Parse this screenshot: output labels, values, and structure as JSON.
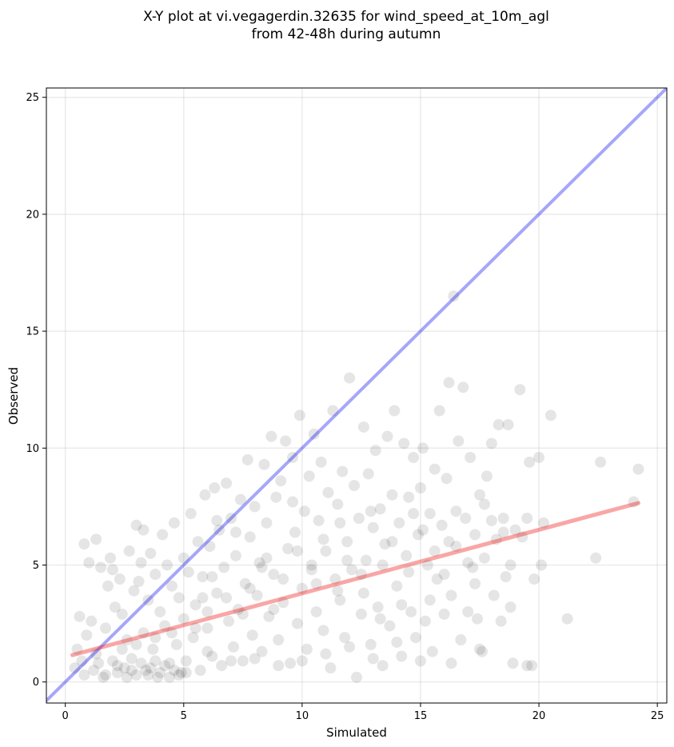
{
  "chart_data": {
    "type": "scatter",
    "title_line1": "X-Y plot at vi.vegagerdin.32635 for wind_speed_at_10m_agl",
    "title_line2": "from 42-48h during autumn",
    "xlabel": "Simulated",
    "ylabel": "Observed",
    "xlim": [
      -0.8,
      25.4
    ],
    "ylim": [
      -0.9,
      25.4
    ],
    "xticks": [
      0,
      5,
      10,
      15,
      20,
      25
    ],
    "yticks": [
      0,
      5,
      10,
      15,
      20,
      25
    ],
    "grid": true,
    "point_color": "#000000",
    "point_alpha": 0.1,
    "identity_line": {
      "color": "#0000ee",
      "alpha": 0.35,
      "from": [
        -0.8,
        -0.8
      ],
      "to": [
        25.4,
        25.4
      ]
    },
    "fit_line": {
      "color": "#ee0000",
      "alpha": 0.35,
      "from": [
        0.3,
        1.15
      ],
      "to": [
        24.2,
        7.65
      ]
    },
    "points": [
      [
        0.4,
        0.6
      ],
      [
        0.5,
        1.4
      ],
      [
        0.6,
        2.8
      ],
      [
        0.7,
        0.9
      ],
      [
        0.8,
        5.9
      ],
      [
        0.8,
        0.3
      ],
      [
        0.9,
        2.0
      ],
      [
        1.0,
        5.1
      ],
      [
        1.1,
        2.6
      ],
      [
        1.2,
        0.5
      ],
      [
        1.3,
        6.1
      ],
      [
        1.3,
        1.2
      ],
      [
        1.5,
        4.9
      ],
      [
        1.6,
        0.2
      ],
      [
        1.7,
        2.3
      ],
      [
        1.8,
        4.1
      ],
      [
        1.9,
        5.3
      ],
      [
        2.0,
        0.9
      ],
      [
        2.0,
        4.8
      ],
      [
        2.1,
        3.2
      ],
      [
        2.2,
        0.4
      ],
      [
        2.3,
        4.4
      ],
      [
        2.4,
        2.9
      ],
      [
        2.5,
        0.6
      ],
      [
        2.6,
        1.8
      ],
      [
        2.7,
        5.6
      ],
      [
        2.8,
        1.0
      ],
      [
        2.9,
        3.9
      ],
      [
        3.0,
        6.7
      ],
      [
        3.0,
        0.3
      ],
      [
        3.1,
        4.3
      ],
      [
        3.2,
        5.1
      ],
      [
        3.3,
        6.5
      ],
      [
        3.3,
        2.1
      ],
      [
        3.4,
        0.5
      ],
      [
        3.5,
        3.5
      ],
      [
        3.6,
        5.5
      ],
      [
        3.7,
        1.4
      ],
      [
        3.8,
        4.6
      ],
      [
        3.9,
        0.2
      ],
      [
        4.0,
        3.0
      ],
      [
        4.1,
        6.3
      ],
      [
        4.2,
        2.4
      ],
      [
        4.3,
        5.0
      ],
      [
        4.4,
        0.8
      ],
      [
        4.5,
        4.1
      ],
      [
        4.6,
        6.8
      ],
      [
        4.7,
        1.6
      ],
      [
        4.8,
        3.6
      ],
      [
        4.9,
        0.4
      ],
      [
        5.0,
        5.3
      ],
      [
        5.0,
        2.7
      ],
      [
        5.1,
        0.9
      ],
      [
        5.2,
        4.7
      ],
      [
        5.3,
        7.2
      ],
      [
        5.4,
        1.9
      ],
      [
        5.5,
        3.3
      ],
      [
        5.6,
        6.0
      ],
      [
        5.7,
        0.5
      ],
      [
        5.8,
        4.5
      ],
      [
        5.9,
        8.0
      ],
      [
        6.0,
        2.3
      ],
      [
        6.1,
        5.8
      ],
      [
        6.2,
        1.1
      ],
      [
        6.3,
        8.3
      ],
      [
        6.4,
        3.8
      ],
      [
        6.5,
        6.5
      ],
      [
        6.6,
        0.7
      ],
      [
        6.7,
        4.9
      ],
      [
        6.8,
        8.5
      ],
      [
        6.9,
        2.6
      ],
      [
        7.0,
        7.0
      ],
      [
        7.1,
        1.5
      ],
      [
        7.2,
        5.4
      ],
      [
        7.3,
        3.1
      ],
      [
        7.4,
        7.8
      ],
      [
        7.5,
        0.9
      ],
      [
        7.6,
        4.2
      ],
      [
        7.7,
        9.5
      ],
      [
        7.8,
        6.2
      ],
      [
        7.9,
        2.0
      ],
      [
        8.0,
        7.5
      ],
      [
        8.1,
        3.7
      ],
      [
        8.2,
        5.1
      ],
      [
        8.3,
        1.3
      ],
      [
        8.4,
        9.3
      ],
      [
        8.5,
        6.8
      ],
      [
        8.6,
        2.8
      ],
      [
        8.7,
        10.5
      ],
      [
        8.8,
        4.6
      ],
      [
        8.9,
        7.9
      ],
      [
        9.0,
        1.8
      ],
      [
        9.1,
        8.6
      ],
      [
        9.2,
        3.4
      ],
      [
        9.3,
        10.3
      ],
      [
        9.4,
        5.7
      ],
      [
        9.5,
        0.8
      ],
      [
        9.6,
        9.6
      ],
      [
        9.7,
        6.4
      ],
      [
        9.8,
        2.5
      ],
      [
        9.9,
        11.4
      ],
      [
        10.0,
        4.0
      ],
      [
        10.1,
        7.3
      ],
      [
        10.2,
        1.4
      ],
      [
        10.3,
        8.8
      ],
      [
        10.4,
        5.0
      ],
      [
        10.5,
        10.6
      ],
      [
        10.6,
        3.0
      ],
      [
        10.7,
        6.9
      ],
      [
        10.8,
        9.4
      ],
      [
        10.9,
        2.2
      ],
      [
        11.0,
        5.6
      ],
      [
        11.1,
        8.1
      ],
      [
        11.2,
        0.6
      ],
      [
        11.3,
        11.6
      ],
      [
        11.4,
        4.4
      ],
      [
        11.5,
        7.6
      ],
      [
        11.6,
        3.5
      ],
      [
        11.7,
        9.0
      ],
      [
        11.8,
        1.9
      ],
      [
        11.9,
        6.0
      ],
      [
        12.0,
        13.0
      ],
      [
        12.1,
        4.8
      ],
      [
        12.2,
        8.4
      ],
      [
        12.3,
        0.2
      ],
      [
        12.4,
        7.0
      ],
      [
        12.5,
        2.9
      ],
      [
        12.6,
        10.9
      ],
      [
        12.7,
        5.2
      ],
      [
        12.8,
        8.9
      ],
      [
        12.9,
        1.6
      ],
      [
        13.0,
        6.6
      ],
      [
        13.1,
        9.9
      ],
      [
        13.2,
        3.2
      ],
      [
        13.3,
        7.4
      ],
      [
        13.4,
        0.7
      ],
      [
        13.5,
        5.9
      ],
      [
        13.6,
        10.5
      ],
      [
        13.7,
        2.4
      ],
      [
        13.8,
        8.0
      ],
      [
        13.9,
        11.6
      ],
      [
        14.0,
        4.1
      ],
      [
        14.1,
        6.8
      ],
      [
        14.2,
        1.1
      ],
      [
        14.3,
        10.2
      ],
      [
        14.4,
        5.4
      ],
      [
        14.5,
        7.9
      ],
      [
        14.6,
        3.0
      ],
      [
        14.7,
        9.6
      ],
      [
        14.8,
        1.9
      ],
      [
        14.9,
        6.3
      ],
      [
        15.0,
        8.3
      ],
      [
        15.1,
        10.0
      ],
      [
        15.2,
        2.6
      ],
      [
        15.3,
        5.0
      ],
      [
        15.4,
        7.2
      ],
      [
        15.5,
        1.3
      ],
      [
        15.6,
        9.1
      ],
      [
        15.7,
        4.4
      ],
      [
        15.8,
        11.6
      ],
      [
        15.9,
        6.7
      ],
      [
        16.0,
        2.9
      ],
      [
        16.1,
        8.7
      ],
      [
        16.2,
        12.8
      ],
      [
        16.3,
        3.7
      ],
      [
        16.4,
        16.5
      ],
      [
        16.5,
        5.8
      ],
      [
        16.6,
        10.3
      ],
      [
        16.7,
        1.8
      ],
      [
        16.8,
        12.6
      ],
      [
        16.9,
        7.0
      ],
      [
        17.0,
        3.0
      ],
      [
        17.1,
        9.6
      ],
      [
        17.2,
        4.9
      ],
      [
        17.3,
        6.3
      ],
      [
        17.4,
        2.7
      ],
      [
        17.5,
        8.0
      ],
      [
        17.6,
        1.3
      ],
      [
        17.7,
        5.3
      ],
      [
        17.8,
        8.8
      ],
      [
        18.0,
        10.2
      ],
      [
        18.1,
        3.7
      ],
      [
        18.2,
        6.1
      ],
      [
        18.3,
        11.0
      ],
      [
        18.4,
        2.6
      ],
      [
        18.5,
        7.0
      ],
      [
        18.6,
        4.5
      ],
      [
        18.7,
        11.0
      ],
      [
        18.8,
        5.0
      ],
      [
        18.9,
        0.8
      ],
      [
        19.2,
        12.5
      ],
      [
        19.3,
        6.2
      ],
      [
        19.5,
        7.0
      ],
      [
        19.6,
        9.4
      ],
      [
        19.7,
        0.7
      ],
      [
        19.8,
        4.4
      ],
      [
        20.0,
        9.6
      ],
      [
        20.1,
        5.0
      ],
      [
        20.2,
        6.8
      ],
      [
        20.5,
        11.4
      ],
      [
        21.2,
        2.7
      ],
      [
        22.4,
        5.3
      ],
      [
        22.6,
        9.4
      ],
      [
        24.0,
        7.7
      ],
      [
        24.2,
        9.1
      ],
      [
        1.4,
        0.8
      ],
      [
        1.7,
        0.3
      ],
      [
        2.2,
        0.7
      ],
      [
        2.6,
        0.2
      ],
      [
        2.8,
        0.5
      ],
      [
        3.2,
        0.8
      ],
      [
        3.5,
        0.3
      ],
      [
        3.6,
        0.6
      ],
      [
        3.8,
        0.9
      ],
      [
        4.0,
        0.4
      ],
      [
        4.2,
        0.7
      ],
      [
        4.4,
        0.2
      ],
      [
        4.6,
        0.5
      ],
      [
        4.8,
        0.3
      ],
      [
        5.1,
        0.4
      ],
      [
        2.4,
        1.4
      ],
      [
        3.0,
        1.6
      ],
      [
        3.8,
        1.9
      ],
      [
        4.5,
        2.1
      ],
      [
        5.5,
        2.3
      ],
      [
        6.0,
        3.0
      ],
      [
        6.8,
        3.6
      ],
      [
        7.5,
        2.9
      ],
      [
        8.8,
        3.1
      ],
      [
        9.2,
        4.4
      ],
      [
        10.6,
        4.2
      ],
      [
        11.5,
        3.9
      ],
      [
        12.5,
        4.6
      ],
      [
        13.4,
        5.0
      ],
      [
        14.5,
        4.7
      ],
      [
        15.6,
        5.6
      ],
      [
        16.2,
        6.0
      ],
      [
        17.0,
        5.1
      ],
      [
        18.0,
        6.9
      ],
      [
        19.0,
        6.5
      ],
      [
        6.4,
        6.9
      ],
      [
        7.2,
        6.4
      ],
      [
        8.5,
        5.3
      ],
      [
        9.6,
        7.7
      ],
      [
        10.9,
        6.1
      ],
      [
        11.6,
        6.8
      ],
      [
        12.9,
        7.3
      ],
      [
        13.8,
        6.0
      ],
      [
        14.7,
        7.2
      ],
      [
        15.1,
        6.5
      ],
      [
        16.5,
        7.3
      ],
      [
        17.7,
        7.6
      ],
      [
        18.5,
        6.4
      ],
      [
        6.2,
        4.5
      ],
      [
        7.8,
        4.0
      ],
      [
        8.3,
        4.9
      ],
      [
        9.8,
        5.6
      ],
      [
        10.4,
        4.8
      ],
      [
        11.9,
        5.2
      ],
      [
        12.6,
        3.8
      ],
      [
        13.3,
        2.7
      ],
      [
        14.2,
        3.3
      ],
      [
        15.4,
        3.5
      ],
      [
        16.0,
        4.6
      ],
      [
        17.3,
        4.2
      ],
      [
        18.8,
        3.2
      ],
      [
        6.0,
        1.3
      ],
      [
        7.0,
        0.9
      ],
      [
        8.0,
        1.0
      ],
      [
        9.0,
        0.7
      ],
      [
        10.0,
        0.9
      ],
      [
        11.0,
        1.2
      ],
      [
        12.0,
        1.5
      ],
      [
        13.0,
        1.0
      ],
      [
        14.0,
        1.7
      ],
      [
        15.0,
        0.9
      ],
      [
        16.3,
        0.8
      ],
      [
        17.5,
        1.4
      ],
      [
        19.5,
        0.7
      ],
      [
        5.8,
        3.6
      ]
    ]
  }
}
